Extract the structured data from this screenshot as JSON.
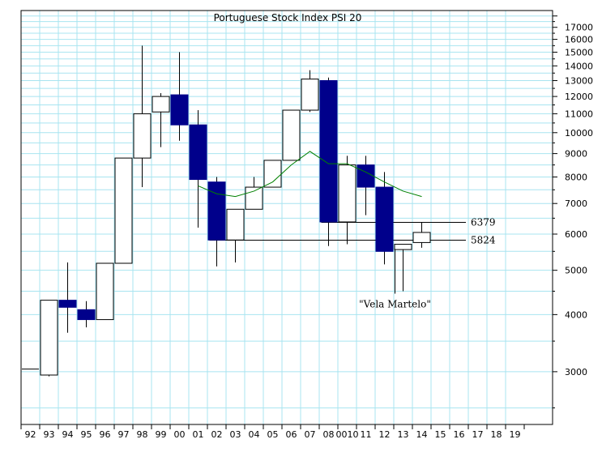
{
  "chart_data": {
    "type": "candlestick",
    "title": "Portuguese Stock Index PSI 20",
    "scale": "log",
    "grid": true,
    "ylim": [
      2300,
      18500
    ],
    "y_ticks": [
      3000,
      4000,
      5000,
      6000,
      7000,
      8000,
      9000,
      10000,
      11000,
      12000,
      13000,
      14000,
      15000,
      16000,
      17000
    ],
    "x_labels": [
      "92",
      "93",
      "94",
      "95",
      "96",
      "97",
      "98",
      "99",
      "00",
      "01",
      "02",
      "03",
      "04",
      "05",
      "06",
      "07",
      "08",
      "0010",
      "11",
      "12",
      "13",
      "14",
      "15",
      "16",
      "17",
      "18",
      "19"
    ],
    "candles": [
      {
        "x": "92",
        "open": 3040,
        "high": 3040,
        "low": 3040,
        "close": 3040
      },
      {
        "x": "93",
        "open": 2950,
        "high": 4300,
        "low": 2930,
        "close": 4300
      },
      {
        "x": "94",
        "open": 4300,
        "high": 5200,
        "low": 3650,
        "close": 4150
      },
      {
        "x": "95",
        "open": 4100,
        "high": 4280,
        "low": 3750,
        "close": 3900
      },
      {
        "x": "96",
        "open": 3900,
        "high": 5180,
        "low": 3900,
        "close": 5180
      },
      {
        "x": "97",
        "open": 5180,
        "high": 8800,
        "low": 5180,
        "close": 8800
      },
      {
        "x": "98",
        "open": 8800,
        "high": 15500,
        "low": 7600,
        "close": 11000
      },
      {
        "x": "99",
        "open": 11100,
        "high": 12200,
        "low": 9300,
        "close": 12000
      },
      {
        "x": "00",
        "open": 12100,
        "high": 15000,
        "low": 9600,
        "close": 10400
      },
      {
        "x": "01",
        "open": 10400,
        "high": 11200,
        "low": 6200,
        "close": 7900
      },
      {
        "x": "02",
        "open": 7800,
        "high": 8000,
        "low": 5100,
        "close": 5824
      },
      {
        "x": "03",
        "open": 5824,
        "high": 6800,
        "low": 5200,
        "close": 6800
      },
      {
        "x": "04",
        "open": 6800,
        "high": 8000,
        "low": 6800,
        "close": 7600
      },
      {
        "x": "05",
        "open": 7600,
        "high": 8700,
        "low": 7600,
        "close": 8700
      },
      {
        "x": "06",
        "open": 8700,
        "high": 11200,
        "low": 8700,
        "close": 11200
      },
      {
        "x": "07",
        "open": 11200,
        "high": 13700,
        "low": 11100,
        "close": 13100
      },
      {
        "x": "08",
        "open": 13000,
        "high": 13200,
        "low": 5650,
        "close": 6379
      },
      {
        "x": "0010",
        "open": 6379,
        "high": 8900,
        "low": 5700,
        "close": 8500
      },
      {
        "x": "11",
        "open": 8500,
        "high": 8900,
        "low": 6600,
        "close": 7600
      },
      {
        "x": "12",
        "open": 7600,
        "high": 8200,
        "low": 5150,
        "close": 5500
      },
      {
        "x": "13",
        "open": 5550,
        "high": 5700,
        "low": 4500,
        "close": 5700
      },
      {
        "x": "14",
        "open": 5750,
        "high": 6379,
        "low": 5600,
        "close": 6050
      }
    ],
    "moving_average": {
      "color": "#008000",
      "values": [
        {
          "x": "01",
          "y": 7650
        },
        {
          "x": "02",
          "y": 7350
        },
        {
          "x": "03",
          "y": 7250
        },
        {
          "x": "04",
          "y": 7450
        },
        {
          "x": "05",
          "y": 7800
        },
        {
          "x": "06",
          "y": 8500
        },
        {
          "x": "07",
          "y": 9100
        },
        {
          "x": "08",
          "y": 8550
        },
        {
          "x": "0010",
          "y": 8550
        },
        {
          "x": "11",
          "y": 8200
        },
        {
          "x": "12",
          "y": 7800
        },
        {
          "x": "13",
          "y": 7450
        },
        {
          "x": "14",
          "y": 7250
        }
      ]
    },
    "levels": [
      {
        "label": "6379",
        "y": 6379,
        "from_x": "08"
      },
      {
        "label": "5824",
        "y": 5824,
        "from_x": "02"
      }
    ],
    "annotation": {
      "text": "\"Vela Martelo\"",
      "x": "13"
    },
    "colors": {
      "bear": "#00008b",
      "bull": "#ffffff",
      "grid": "#a8e4f0",
      "average": "#008000",
      "frame": "#000000"
    }
  }
}
